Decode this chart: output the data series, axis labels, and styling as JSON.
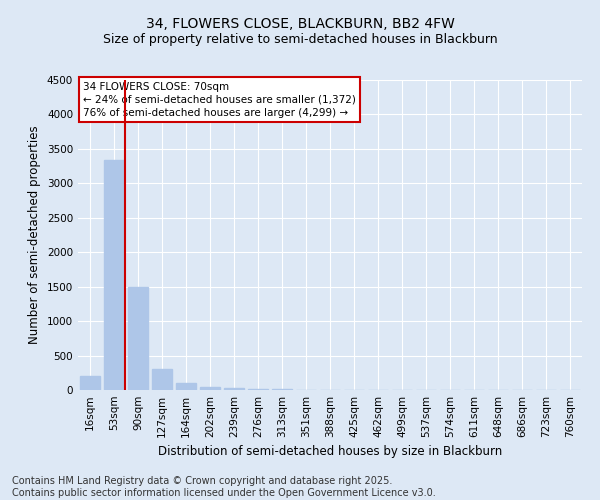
{
  "title": "34, FLOWERS CLOSE, BLACKBURN, BB2 4FW",
  "subtitle": "Size of property relative to semi-detached houses in Blackburn",
  "xlabel": "Distribution of semi-detached houses by size in Blackburn",
  "ylabel": "Number of semi-detached properties",
  "annotation_title": "34 FLOWERS CLOSE: 70sqm",
  "annotation_line1": "← 24% of semi-detached houses are smaller (1,372)",
  "annotation_line2": "76% of semi-detached houses are larger (4,299) →",
  "footer_line1": "Contains HM Land Registry data © Crown copyright and database right 2025.",
  "footer_line2": "Contains public sector information licensed under the Open Government Licence v3.0.",
  "categories": [
    "16sqm",
    "53sqm",
    "90sqm",
    "127sqm",
    "164sqm",
    "202sqm",
    "239sqm",
    "276sqm",
    "313sqm",
    "351sqm",
    "388sqm",
    "425sqm",
    "462sqm",
    "499sqm",
    "537sqm",
    "574sqm",
    "611sqm",
    "648sqm",
    "686sqm",
    "723sqm",
    "760sqm"
  ],
  "values": [
    210,
    3340,
    1490,
    310,
    100,
    50,
    30,
    15,
    10,
    5,
    3,
    2,
    2,
    2,
    2,
    1,
    1,
    1,
    1,
    1,
    1
  ],
  "bar_color": "#aec6e8",
  "vline_color": "#cc0000",
  "vline_x": 1.46,
  "ylim": [
    0,
    4500
  ],
  "yticks": [
    0,
    500,
    1000,
    1500,
    2000,
    2500,
    3000,
    3500,
    4000,
    4500
  ],
  "background_color": "#dde8f5",
  "plot_bg_color": "#dde8f5",
  "grid_color": "#ffffff",
  "annotation_box_edgecolor": "#cc0000",
  "annotation_box_facecolor": "#ffffff",
  "title_fontsize": 10,
  "subtitle_fontsize": 9,
  "axis_label_fontsize": 8.5,
  "tick_fontsize": 7.5,
  "annotation_fontsize": 7.5,
  "footer_fontsize": 7
}
